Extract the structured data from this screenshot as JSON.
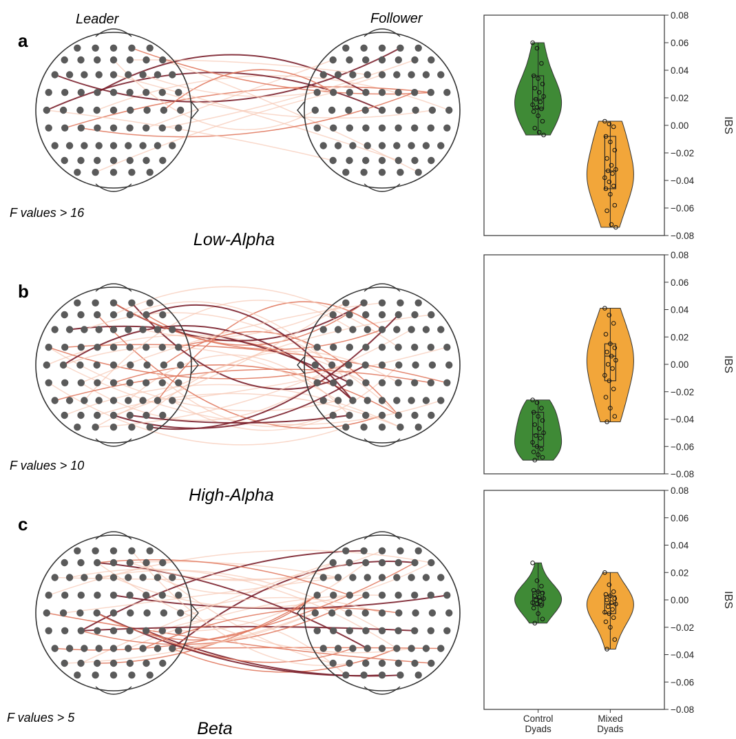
{
  "figure": {
    "leader_label": "Leader",
    "follower_label": "Follower",
    "categories": [
      "Control Dyads",
      "Mixed Dyads"
    ],
    "ibs_axis_label": "IBS",
    "colors": {
      "control": "#3f8a36",
      "mixed": "#f2a63a",
      "electrode": "#5a5a5a",
      "head_outline": "#333333",
      "connection_weak": "#f7c8b3",
      "connection_mid": "#e0785e",
      "connection_strong": "#7a1f2b"
    }
  },
  "panels": [
    {
      "letter": "a",
      "band": "Low-Alpha",
      "threshold": "F values > 16"
    },
    {
      "letter": "b",
      "band": "High-Alpha",
      "threshold": "F values > 10"
    },
    {
      "letter": "c",
      "band": "Beta",
      "threshold": "F values > 5"
    }
  ],
  "chart_data": [
    {
      "type": "violin",
      "panel": "a",
      "ylabel": "IBS",
      "ylim": [
        -0.08,
        0.08
      ],
      "yticks": [
        "0.08",
        "0.06",
        "0.04",
        "0.02",
        "0.00",
        "−0.02",
        "−0.04",
        "−0.06",
        "−0.08"
      ],
      "series": [
        {
          "name": "Control Dyads",
          "min": -0.007,
          "q1": 0.012,
          "median": 0.019,
          "q3": 0.036,
          "max": 0.06,
          "points": [
            0.06,
            0.056,
            0.045,
            0.036,
            0.034,
            0.03,
            0.027,
            0.024,
            0.021,
            0.019,
            0.017,
            0.015,
            0.013,
            0.012,
            0.01,
            0.007,
            0.003,
            -0.002,
            -0.005,
            -0.007
          ]
        },
        {
          "name": "Mixed Dyads",
          "min": -0.074,
          "q1": -0.046,
          "median": -0.033,
          "q3": -0.008,
          "max": 0.003,
          "points": [
            0.003,
            0.001,
            -0.001,
            -0.008,
            -0.012,
            -0.018,
            -0.024,
            -0.029,
            -0.032,
            -0.033,
            -0.035,
            -0.038,
            -0.041,
            -0.044,
            -0.046,
            -0.05,
            -0.058,
            -0.062,
            -0.072,
            -0.074
          ]
        }
      ]
    },
    {
      "type": "violin",
      "panel": "b",
      "ylabel": "IBS",
      "ylim": [
        -0.08,
        0.08
      ],
      "yticks": [
        "0.08",
        "0.06",
        "0.04",
        "0.02",
        "0.00",
        "−0.02",
        "−0.04",
        "−0.06",
        "−0.08"
      ],
      "series": [
        {
          "name": "Control Dyads",
          "min": -0.07,
          "q1": -0.06,
          "median": -0.051,
          "q3": -0.035,
          "max": -0.026,
          "points": [
            -0.026,
            -0.028,
            -0.032,
            -0.035,
            -0.038,
            -0.041,
            -0.044,
            -0.047,
            -0.05,
            -0.052,
            -0.054,
            -0.057,
            -0.06,
            -0.062,
            -0.064,
            -0.066,
            -0.068,
            -0.07
          ]
        },
        {
          "name": "Mixed Dyads",
          "min": -0.042,
          "q1": -0.012,
          "median": 0.006,
          "q3": 0.015,
          "max": 0.041,
          "points": [
            0.041,
            0.036,
            0.03,
            0.022,
            0.015,
            0.012,
            0.009,
            0.006,
            0.003,
            0.0,
            -0.003,
            -0.008,
            -0.012,
            -0.018,
            -0.024,
            -0.032,
            -0.038,
            -0.042
          ]
        }
      ]
    },
    {
      "type": "violin",
      "panel": "c",
      "ylabel": "IBS",
      "ylim": [
        -0.08,
        0.08
      ],
      "yticks": [
        "0.08",
        "0.06",
        "0.04",
        "0.02",
        "0.00",
        "−0.02",
        "−0.04",
        "−0.06",
        "−0.08"
      ],
      "series": [
        {
          "name": "Control Dyads",
          "min": -0.017,
          "q1": -0.004,
          "median": 0.001,
          "q3": 0.006,
          "max": 0.027,
          "points": [
            0.027,
            0.014,
            0.01,
            0.007,
            0.006,
            0.005,
            0.003,
            0.002,
            0.001,
            0.0,
            -0.001,
            -0.002,
            -0.003,
            -0.004,
            -0.006,
            -0.01,
            -0.014,
            -0.017
          ]
        },
        {
          "name": "Mixed Dyads",
          "min": -0.036,
          "q1": -0.01,
          "median": -0.003,
          "q3": 0.003,
          "max": 0.02,
          "points": [
            0.02,
            0.011,
            0.006,
            0.004,
            0.003,
            0.001,
            0.0,
            -0.002,
            -0.003,
            -0.005,
            -0.007,
            -0.009,
            -0.01,
            -0.013,
            -0.016,
            -0.02,
            -0.029,
            -0.036
          ]
        }
      ]
    }
  ]
}
